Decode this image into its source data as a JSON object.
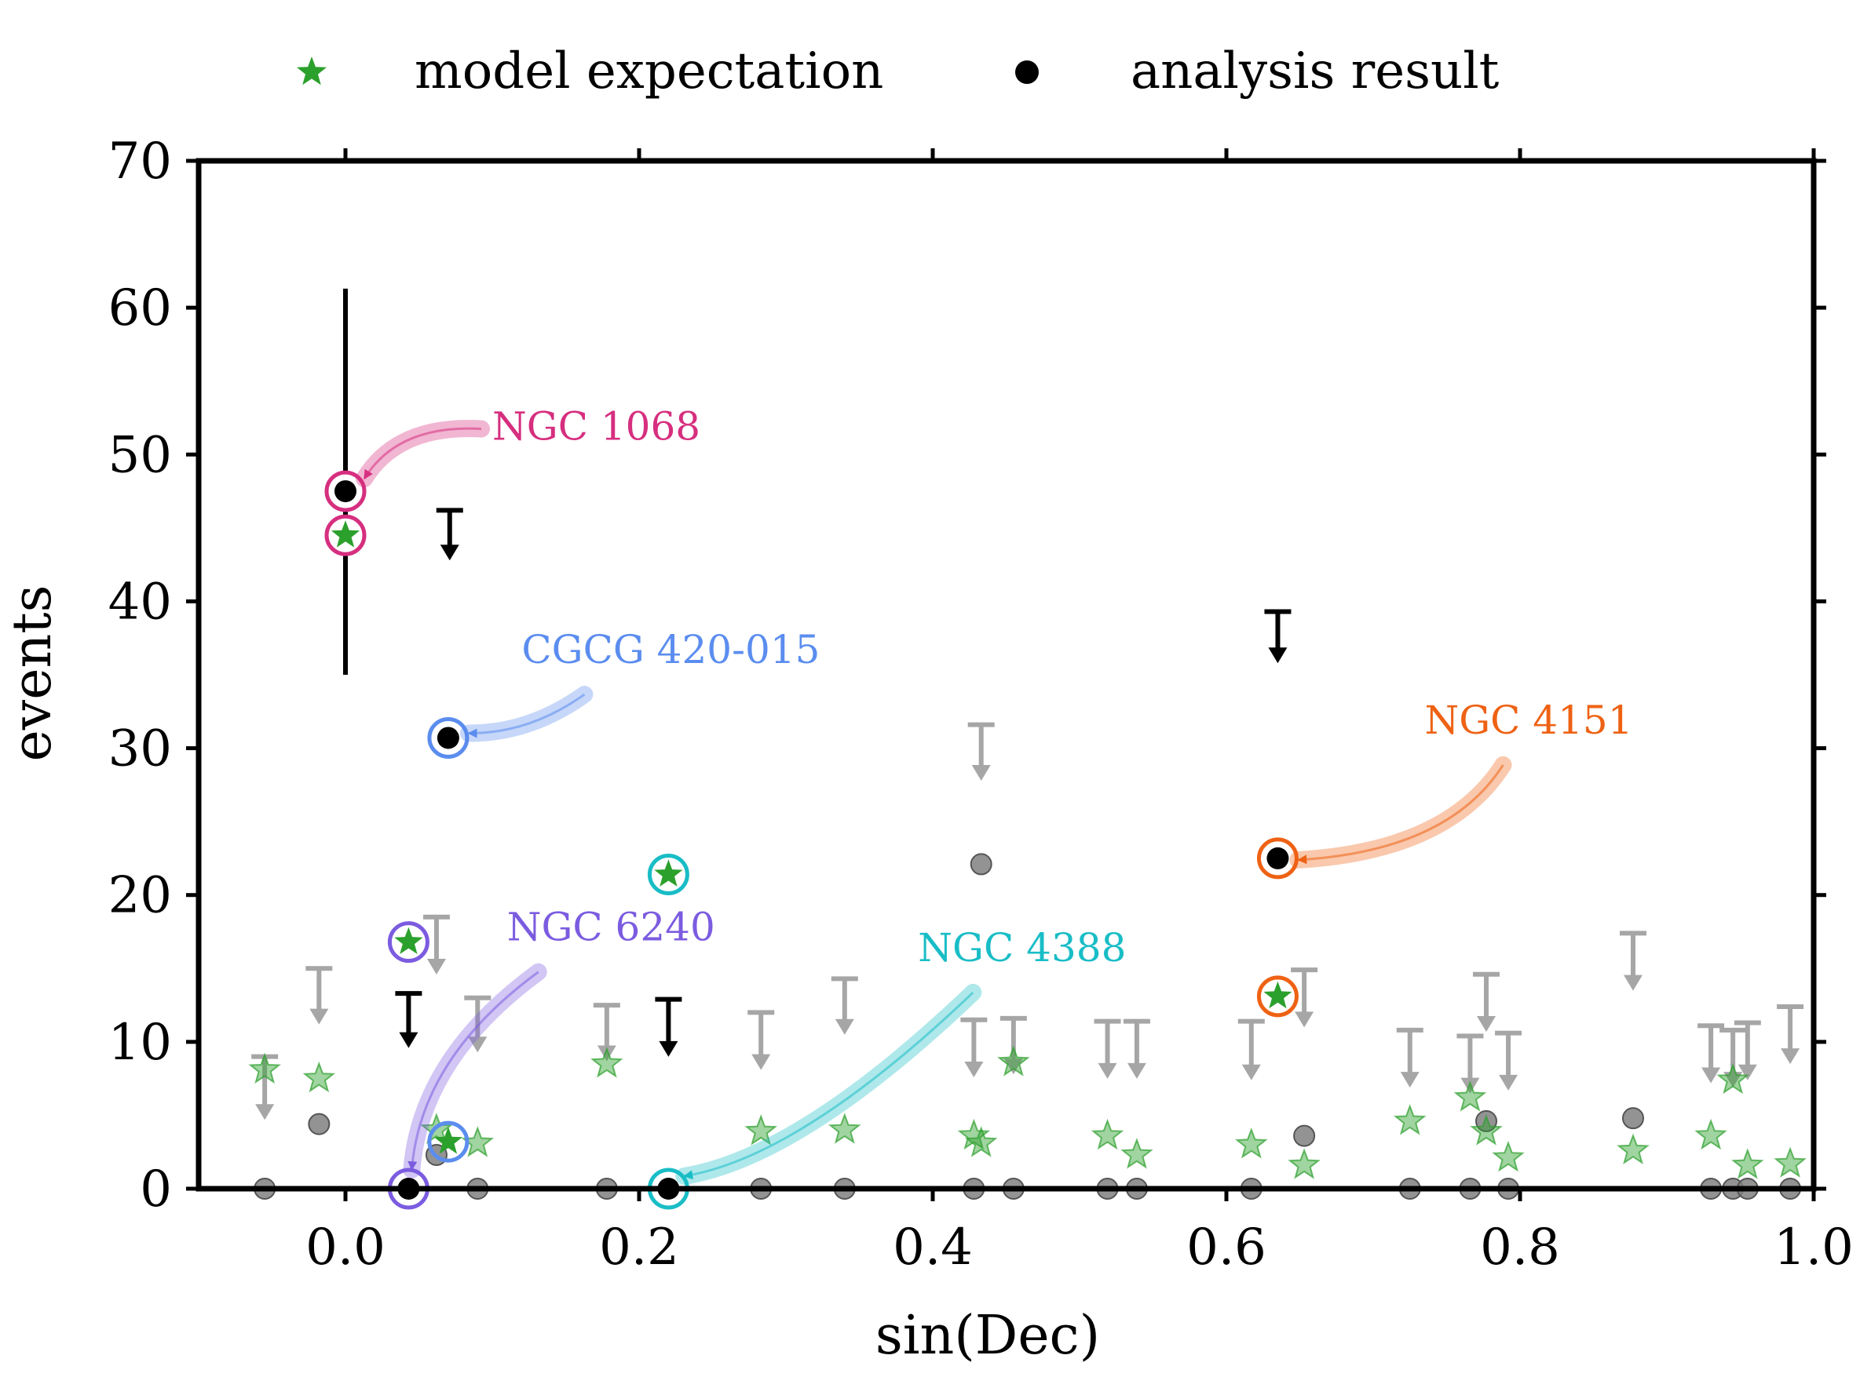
{
  "chart_data": {
    "type": "scatter",
    "xlabel": "sin(Dec)",
    "ylabel": "events",
    "xlim": [
      -0.1,
      1.0
    ],
    "ylim": [
      0,
      70
    ],
    "xticks": [
      "0.0",
      "0.2",
      "0.4",
      "0.6",
      "0.8",
      "1.0"
    ],
    "yticks": [
      "0",
      "10",
      "20",
      "30",
      "40",
      "50",
      "60",
      "70"
    ],
    "grid": false,
    "legend_position": "top-center",
    "legend": [
      {
        "marker": "star",
        "label": "model expectation",
        "color": "#2ca02c"
      },
      {
        "marker": "circle",
        "label": "analysis result",
        "color": "#000000"
      }
    ],
    "colors": {
      "model": "#2ca02c",
      "result": "#000000",
      "background_marker": "#808080",
      "upper_limit_faded": "#a6a6a6"
    },
    "highlighted_sources": [
      {
        "name": "NGC 1068",
        "sin_dec": 0.0,
        "result": 47.5,
        "result_err": [
          35.0,
          61.3
        ],
        "model": 44.5,
        "color": "#d62f7f",
        "label_at": [
          0.1,
          51.0
        ]
      },
      {
        "name": "CGCG 420-015",
        "sin_dec": 0.07,
        "result": 30.7,
        "model": 3.2,
        "color": "#5b8def",
        "label_at": [
          0.12,
          35.8
        ]
      },
      {
        "name": "NGC 4151",
        "sin_dec": 0.635,
        "result": 22.5,
        "model": 13.1,
        "color": "#ee6214",
        "label_at": [
          0.735,
          31.0
        ]
      },
      {
        "name": "NGC 6240",
        "sin_dec": 0.043,
        "result": 0.0,
        "model": 16.8,
        "color": "#7b5ce0",
        "label_at": [
          0.11,
          16.9
        ]
      },
      {
        "name": "NGC 4388",
        "sin_dec": 0.22,
        "result": 0.0,
        "model": 21.4,
        "color": "#19bdc6",
        "label_at": [
          0.39,
          15.5
        ]
      }
    ],
    "highlighted_upper_limits": [
      {
        "sin_dec": 0.071,
        "limit": 46.2,
        "tip": 43.0
      },
      {
        "sin_dec": 0.635,
        "limit": 39.3,
        "tip": 36.0
      },
      {
        "sin_dec": 0.043,
        "limit": 13.3,
        "tip": 9.8
      },
      {
        "sin_dec": 0.22,
        "limit": 12.9,
        "tip": 9.2
      }
    ],
    "other_results": [
      {
        "sin_dec": -0.055,
        "value": 0
      },
      {
        "sin_dec": -0.018,
        "value": 4.4
      },
      {
        "sin_dec": 0.062,
        "value": 2.3
      },
      {
        "sin_dec": 0.09,
        "value": 0
      },
      {
        "sin_dec": 0.178,
        "value": 0
      },
      {
        "sin_dec": 0.283,
        "value": 0
      },
      {
        "sin_dec": 0.34,
        "value": 0
      },
      {
        "sin_dec": 0.428,
        "value": 0
      },
      {
        "sin_dec": 0.433,
        "value": 22.1
      },
      {
        "sin_dec": 0.455,
        "value": 0
      },
      {
        "sin_dec": 0.519,
        "value": 0
      },
      {
        "sin_dec": 0.539,
        "value": 0
      },
      {
        "sin_dec": 0.617,
        "value": 0
      },
      {
        "sin_dec": 0.653,
        "value": 3.6
      },
      {
        "sin_dec": 0.725,
        "value": 0
      },
      {
        "sin_dec": 0.766,
        "value": 0
      },
      {
        "sin_dec": 0.777,
        "value": 4.6
      },
      {
        "sin_dec": 0.792,
        "value": 0
      },
      {
        "sin_dec": 0.877,
        "value": 4.8
      },
      {
        "sin_dec": 0.93,
        "value": 0
      },
      {
        "sin_dec": 0.945,
        "value": 0
      },
      {
        "sin_dec": 0.955,
        "value": 0
      },
      {
        "sin_dec": 0.984,
        "value": 0
      }
    ],
    "other_models": [
      {
        "sin_dec": -0.055,
        "value": 8.1
      },
      {
        "sin_dec": -0.018,
        "value": 7.5
      },
      {
        "sin_dec": 0.062,
        "value": 4.0
      },
      {
        "sin_dec": 0.09,
        "value": 3.1
      },
      {
        "sin_dec": 0.178,
        "value": 8.5
      },
      {
        "sin_dec": 0.283,
        "value": 3.9
      },
      {
        "sin_dec": 0.34,
        "value": 4.0
      },
      {
        "sin_dec": 0.428,
        "value": 3.6
      },
      {
        "sin_dec": 0.433,
        "value": 3.1
      },
      {
        "sin_dec": 0.455,
        "value": 8.6
      },
      {
        "sin_dec": 0.519,
        "value": 3.6
      },
      {
        "sin_dec": 0.539,
        "value": 2.3
      },
      {
        "sin_dec": 0.617,
        "value": 3.0
      },
      {
        "sin_dec": 0.653,
        "value": 1.6
      },
      {
        "sin_dec": 0.725,
        "value": 4.6
      },
      {
        "sin_dec": 0.766,
        "value": 6.2
      },
      {
        "sin_dec": 0.777,
        "value": 3.9
      },
      {
        "sin_dec": 0.792,
        "value": 2.1
      },
      {
        "sin_dec": 0.877,
        "value": 2.6
      },
      {
        "sin_dec": 0.93,
        "value": 3.6
      },
      {
        "sin_dec": 0.945,
        "value": 7.4
      },
      {
        "sin_dec": 0.955,
        "value": 1.6
      },
      {
        "sin_dec": 0.984,
        "value": 1.7
      }
    ],
    "other_upper_limits": [
      {
        "sin_dec": -0.055,
        "limit": 9.0,
        "tip": 4.9
      },
      {
        "sin_dec": -0.018,
        "limit": 15.0,
        "tip": 11.4
      },
      {
        "sin_dec": 0.062,
        "limit": 18.5,
        "tip": 14.8
      },
      {
        "sin_dec": 0.09,
        "limit": 13.0,
        "tip": 9.5
      },
      {
        "sin_dec": 0.178,
        "limit": 12.5,
        "tip": 8.9
      },
      {
        "sin_dec": 0.283,
        "limit": 12.0,
        "tip": 8.3
      },
      {
        "sin_dec": 0.34,
        "limit": 14.3,
        "tip": 10.7
      },
      {
        "sin_dec": 0.428,
        "limit": 11.5,
        "tip": 7.8
      },
      {
        "sin_dec": 0.433,
        "limit": 31.6,
        "tip": 28.0
      },
      {
        "sin_dec": 0.455,
        "limit": 11.6,
        "tip": 8.0
      },
      {
        "sin_dec": 0.519,
        "limit": 11.4,
        "tip": 7.7
      },
      {
        "sin_dec": 0.539,
        "limit": 11.4,
        "tip": 7.7
      },
      {
        "sin_dec": 0.617,
        "limit": 11.4,
        "tip": 7.6
      },
      {
        "sin_dec": 0.653,
        "limit": 14.9,
        "tip": 11.2
      },
      {
        "sin_dec": 0.725,
        "limit": 10.8,
        "tip": 7.1
      },
      {
        "sin_dec": 0.766,
        "limit": 10.4,
        "tip": 6.7
      },
      {
        "sin_dec": 0.777,
        "limit": 14.6,
        "tip": 10.9
      },
      {
        "sin_dec": 0.792,
        "limit": 10.6,
        "tip": 6.9
      },
      {
        "sin_dec": 0.877,
        "limit": 17.4,
        "tip": 13.7
      },
      {
        "sin_dec": 0.93,
        "limit": 11.1,
        "tip": 7.4
      },
      {
        "sin_dec": 0.945,
        "limit": 10.8,
        "tip": 7.1
      },
      {
        "sin_dec": 0.955,
        "limit": 11.3,
        "tip": 7.6
      },
      {
        "sin_dec": 0.984,
        "limit": 12.4,
        "tip": 8.7
      }
    ]
  }
}
